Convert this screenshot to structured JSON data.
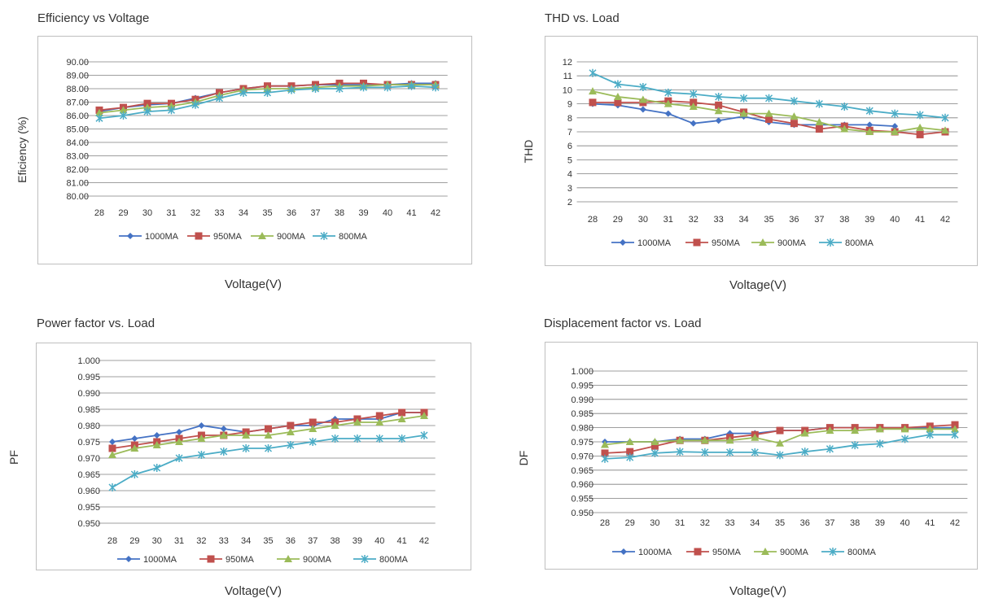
{
  "colors": {
    "1000MA": "#4472c4",
    "950MA": "#c0504d",
    "900MA": "#9bbb59",
    "800MA": "#4bacc6"
  },
  "chart_data": [
    {
      "id": "efficiency",
      "type": "line",
      "title": "Efficiency vs Voltage",
      "xlabel": "Voltage(V)",
      "ylabel": "Eficiency (%)",
      "categories": [
        "28",
        "29",
        "30",
        "31",
        "32",
        "33",
        "34",
        "35",
        "36",
        "37",
        "38",
        "39",
        "40",
        "41",
        "42"
      ],
      "ylim": [
        80,
        90
      ],
      "yticks": [
        "80.00",
        "81.00",
        "82.00",
        "83.00",
        "84.00",
        "85.00",
        "86.00",
        "87.00",
        "88.00",
        "89.00",
        "90.00"
      ],
      "series": [
        {
          "name": "1000MA",
          "values": [
            86.3,
            86.6,
            86.8,
            86.9,
            87.3,
            87.7,
            88.0,
            88.2,
            88.2,
            88.3,
            88.3,
            88.3,
            88.3,
            88.4,
            88.4
          ]
        },
        {
          "name": "950MA",
          "values": [
            86.4,
            86.6,
            86.9,
            86.9,
            87.2,
            87.7,
            88.0,
            88.2,
            88.2,
            88.3,
            88.4,
            88.4,
            88.3,
            88.3,
            88.3
          ]
        },
        {
          "name": "900MA",
          "values": [
            86.2,
            86.4,
            86.6,
            86.7,
            87.0,
            87.5,
            87.9,
            88.0,
            88.0,
            88.1,
            88.2,
            88.2,
            88.3,
            88.3,
            88.3
          ]
        },
        {
          "name": "800MA",
          "values": [
            85.8,
            86.0,
            86.3,
            86.4,
            86.8,
            87.3,
            87.7,
            87.7,
            87.9,
            88.0,
            88.0,
            88.1,
            88.1,
            88.2,
            88.1
          ]
        }
      ]
    },
    {
      "id": "thd",
      "type": "line",
      "title": "THD vs. Load",
      "xlabel": "Voltage(V)",
      "ylabel": "THD",
      "categories": [
        "28",
        "29",
        "30",
        "31",
        "32",
        "33",
        "34",
        "35",
        "36",
        "37",
        "38",
        "39",
        "40",
        "41",
        "42"
      ],
      "ylim": [
        2,
        12
      ],
      "yticks": [
        "2",
        "3",
        "4",
        "5",
        "6",
        "7",
        "8",
        "9",
        "10",
        "11",
        "12"
      ],
      "series": [
        {
          "name": "1000MA",
          "values": [
            9.0,
            8.9,
            8.6,
            8.3,
            7.6,
            7.8,
            8.1,
            7.7,
            7.5,
            7.5,
            7.5,
            7.5,
            7.4,
            null,
            null
          ]
        },
        {
          "name": "950MA",
          "values": [
            9.1,
            9.1,
            9.1,
            9.2,
            9.1,
            8.9,
            8.4,
            7.9,
            7.6,
            7.2,
            7.4,
            7.1,
            7.0,
            6.8,
            7.0
          ]
        },
        {
          "name": "900MA",
          "values": [
            9.9,
            9.5,
            9.3,
            9.0,
            8.8,
            8.5,
            8.3,
            8.3,
            8.1,
            7.7,
            7.2,
            7.0,
            7.0,
            7.3,
            7.1
          ]
        },
        {
          "name": "800MA",
          "values": [
            11.2,
            10.4,
            10.2,
            9.8,
            9.7,
            9.5,
            9.4,
            9.4,
            9.2,
            9.0,
            8.8,
            8.5,
            8.3,
            8.2,
            8.0
          ]
        }
      ]
    },
    {
      "id": "pf",
      "type": "line",
      "title": "Power factor vs. Load",
      "xlabel": "Voltage(V)",
      "ylabel": "PF",
      "categories": [
        "28",
        "29",
        "30",
        "31",
        "32",
        "33",
        "34",
        "35",
        "36",
        "37",
        "38",
        "39",
        "40",
        "41",
        "42"
      ],
      "ylim": [
        0.95,
        1.0
      ],
      "yticks": [
        "0.950",
        "0.955",
        "0.960",
        "0.965",
        "0.970",
        "0.975",
        "0.980",
        "0.985",
        "0.990",
        "0.995",
        "1.000"
      ],
      "series": [
        {
          "name": "1000MA",
          "values": [
            0.975,
            0.976,
            0.977,
            0.978,
            0.98,
            0.979,
            0.978,
            0.979,
            0.98,
            0.98,
            0.982,
            0.982,
            0.982,
            0.984,
            0.984
          ]
        },
        {
          "name": "950MA",
          "values": [
            0.973,
            0.974,
            0.975,
            0.976,
            0.977,
            0.977,
            0.978,
            0.979,
            0.98,
            0.981,
            0.981,
            0.982,
            0.983,
            0.984,
            0.984
          ]
        },
        {
          "name": "900MA",
          "values": [
            0.971,
            0.973,
            0.974,
            0.975,
            0.976,
            0.977,
            0.977,
            0.977,
            0.978,
            0.979,
            0.98,
            0.981,
            0.981,
            0.982,
            0.983
          ]
        },
        {
          "name": "800MA",
          "values": [
            0.961,
            0.965,
            0.967,
            0.97,
            0.971,
            0.972,
            0.973,
            0.973,
            0.974,
            0.975,
            0.976,
            0.976,
            0.976,
            0.976,
            0.977
          ]
        }
      ]
    },
    {
      "id": "df",
      "type": "line",
      "title": "Displacement factor vs. Load",
      "xlabel": "Voltage(V)",
      "ylabel": "DF",
      "categories": [
        "28",
        "29",
        "30",
        "31",
        "32",
        "33",
        "34",
        "35",
        "36",
        "37",
        "38",
        "39",
        "40",
        "41",
        "42"
      ],
      "ylim": [
        0.95,
        1.0
      ],
      "yticks": [
        "0.950",
        "0.955",
        "0.960",
        "0.965",
        "0.970",
        "0.975",
        "0.980",
        "0.985",
        "0.990",
        "0.995",
        "1.000"
      ],
      "series": [
        {
          "name": "1000MA",
          "values": [
            0.975,
            0.975,
            0.975,
            0.976,
            0.976,
            0.978,
            0.978,
            0.979,
            0.979,
            0.98,
            0.98,
            0.98,
            0.98,
            0.98,
            0.98
          ]
        },
        {
          "name": "950MA",
          "values": [
            0.971,
            0.9715,
            0.9735,
            0.9755,
            0.9755,
            0.9765,
            0.9775,
            0.979,
            0.979,
            0.98,
            0.98,
            0.98,
            0.98,
            0.9805,
            0.981
          ]
        },
        {
          "name": "900MA",
          "values": [
            0.974,
            0.975,
            0.975,
            0.9755,
            0.9755,
            0.9755,
            0.9765,
            0.9745,
            0.978,
            0.979,
            0.979,
            0.9795,
            0.9795,
            0.9795,
            0.9795
          ]
        },
        {
          "name": "800MA",
          "values": [
            0.969,
            0.9695,
            0.971,
            0.9715,
            0.9713,
            0.9713,
            0.9713,
            0.9703,
            0.9715,
            0.9725,
            0.9738,
            0.9743,
            0.976,
            0.9775,
            0.9775
          ]
        }
      ]
    }
  ]
}
